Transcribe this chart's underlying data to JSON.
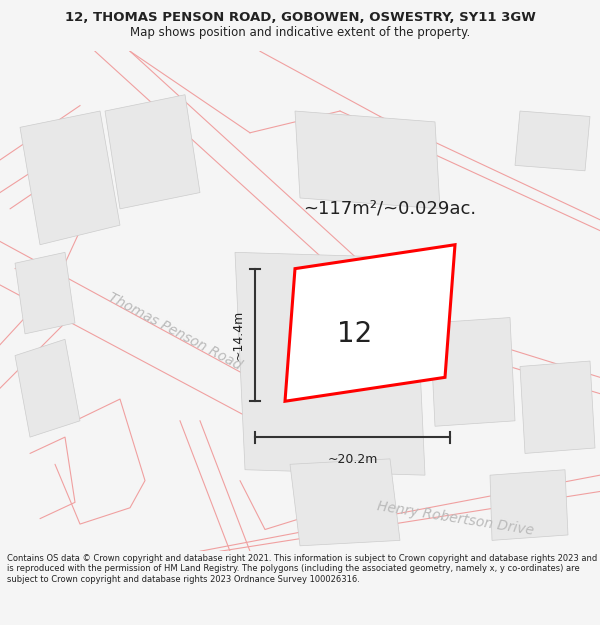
{
  "title": "12, THOMAS PENSON ROAD, GOBOWEN, OSWESTRY, SY11 3GW",
  "subtitle": "Map shows position and indicative extent of the property.",
  "area_text": "~117m²/~0.029ac.",
  "label_number": "12",
  "dim_width": "~20.2m",
  "dim_height": "~14.4m",
  "road_label_1": "Thomas Penson Road",
  "road_label_2": "Henry Robertson Drive",
  "footer": "Contains OS data © Crown copyright and database right 2021. This information is subject to Crown copyright and database rights 2023 and is reproduced with the permission of HM Land Registry. The polygons (including the associated geometry, namely x, y co-ordinates) are subject to Crown copyright and database rights 2023 Ordnance Survey 100026316.",
  "bg_color": "#f5f5f5",
  "map_bg": "#ffffff",
  "bld_color": "#e8e8e8",
  "bld_edge": "#cccccc",
  "road_stroke": "#f0a0a0",
  "plot_stroke": "#ff0000",
  "dim_color": "#333333",
  "text_color": "#222222",
  "road_text_color": "#bbbbbb",
  "title_fontsize": 9.5,
  "subtitle_fontsize": 8.5,
  "area_fontsize": 13,
  "label_fontsize": 20,
  "dim_fontsize": 9,
  "road_fontsize": 10,
  "footer_fontsize": 6.0
}
